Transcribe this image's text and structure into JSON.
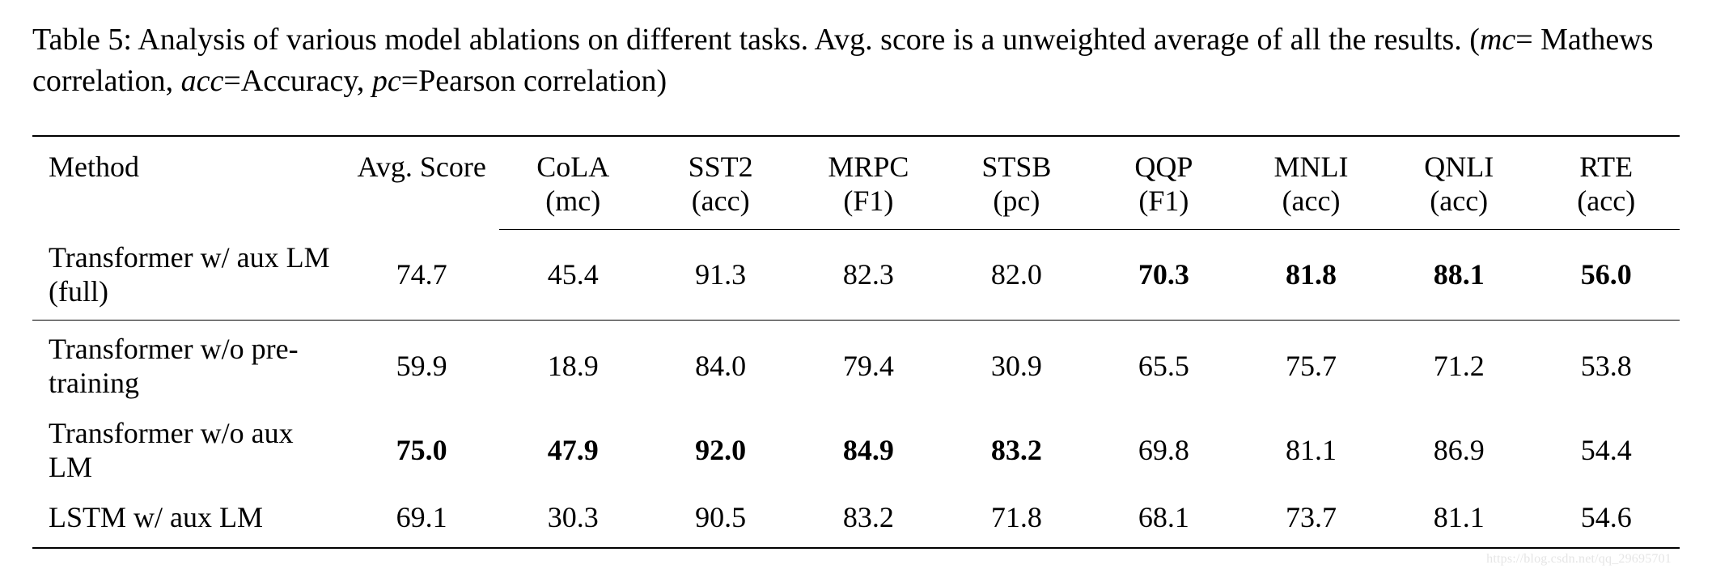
{
  "caption": {
    "prefix": "Table 5: Analysis of various model ablations on different tasks. Avg. score is a unweighted average of all the results. (",
    "mc_abbr": "mc",
    "mc_def": "= Mathews correlation, ",
    "acc_abbr": "acc",
    "acc_def": "=Accuracy, ",
    "pc_abbr": "pc",
    "pc_def": "=Pearson correlation)"
  },
  "columns": {
    "method": "Method",
    "avg": "Avg. Score",
    "tasks": [
      {
        "name": "CoLA",
        "metric": "(mc)"
      },
      {
        "name": "SST2",
        "metric": "(acc)"
      },
      {
        "name": "MRPC",
        "metric": "(F1)"
      },
      {
        "name": "STSB",
        "metric": "(pc)"
      },
      {
        "name": "QQP",
        "metric": "(F1)"
      },
      {
        "name": "MNLI",
        "metric": "(acc)"
      },
      {
        "name": "QNLI",
        "metric": "(acc)"
      },
      {
        "name": "RTE",
        "metric": "(acc)"
      }
    ]
  },
  "rows": [
    {
      "method": "Transformer w/ aux LM (full)",
      "values": [
        "74.7",
        "45.4",
        "91.3",
        "82.3",
        "82.0",
        "70.3",
        "81.8",
        "88.1",
        "56.0"
      ],
      "bold": [
        false,
        false,
        false,
        false,
        false,
        true,
        true,
        true,
        true
      ]
    },
    {
      "method": "Transformer w/o pre-training",
      "values": [
        "59.9",
        "18.9",
        "84.0",
        "79.4",
        "30.9",
        "65.5",
        "75.7",
        "71.2",
        "53.8"
      ],
      "bold": [
        false,
        false,
        false,
        false,
        false,
        false,
        false,
        false,
        false
      ]
    },
    {
      "method": "Transformer w/o aux LM",
      "values": [
        "75.0",
        "47.9",
        "92.0",
        "84.9",
        "83.2",
        "69.8",
        "81.1",
        "86.9",
        "54.4"
      ],
      "bold": [
        true,
        true,
        true,
        true,
        true,
        false,
        false,
        false,
        false
      ]
    },
    {
      "method": "LSTM w/ aux LM",
      "values": [
        "69.1",
        "30.3",
        "90.5",
        "83.2",
        "71.8",
        "68.1",
        "73.7",
        "81.1",
        "54.6"
      ],
      "bold": [
        false,
        false,
        false,
        false,
        false,
        false,
        false,
        false,
        false
      ]
    }
  ],
  "watermark": "https://blog.csdn.net/qq_29695701"
}
